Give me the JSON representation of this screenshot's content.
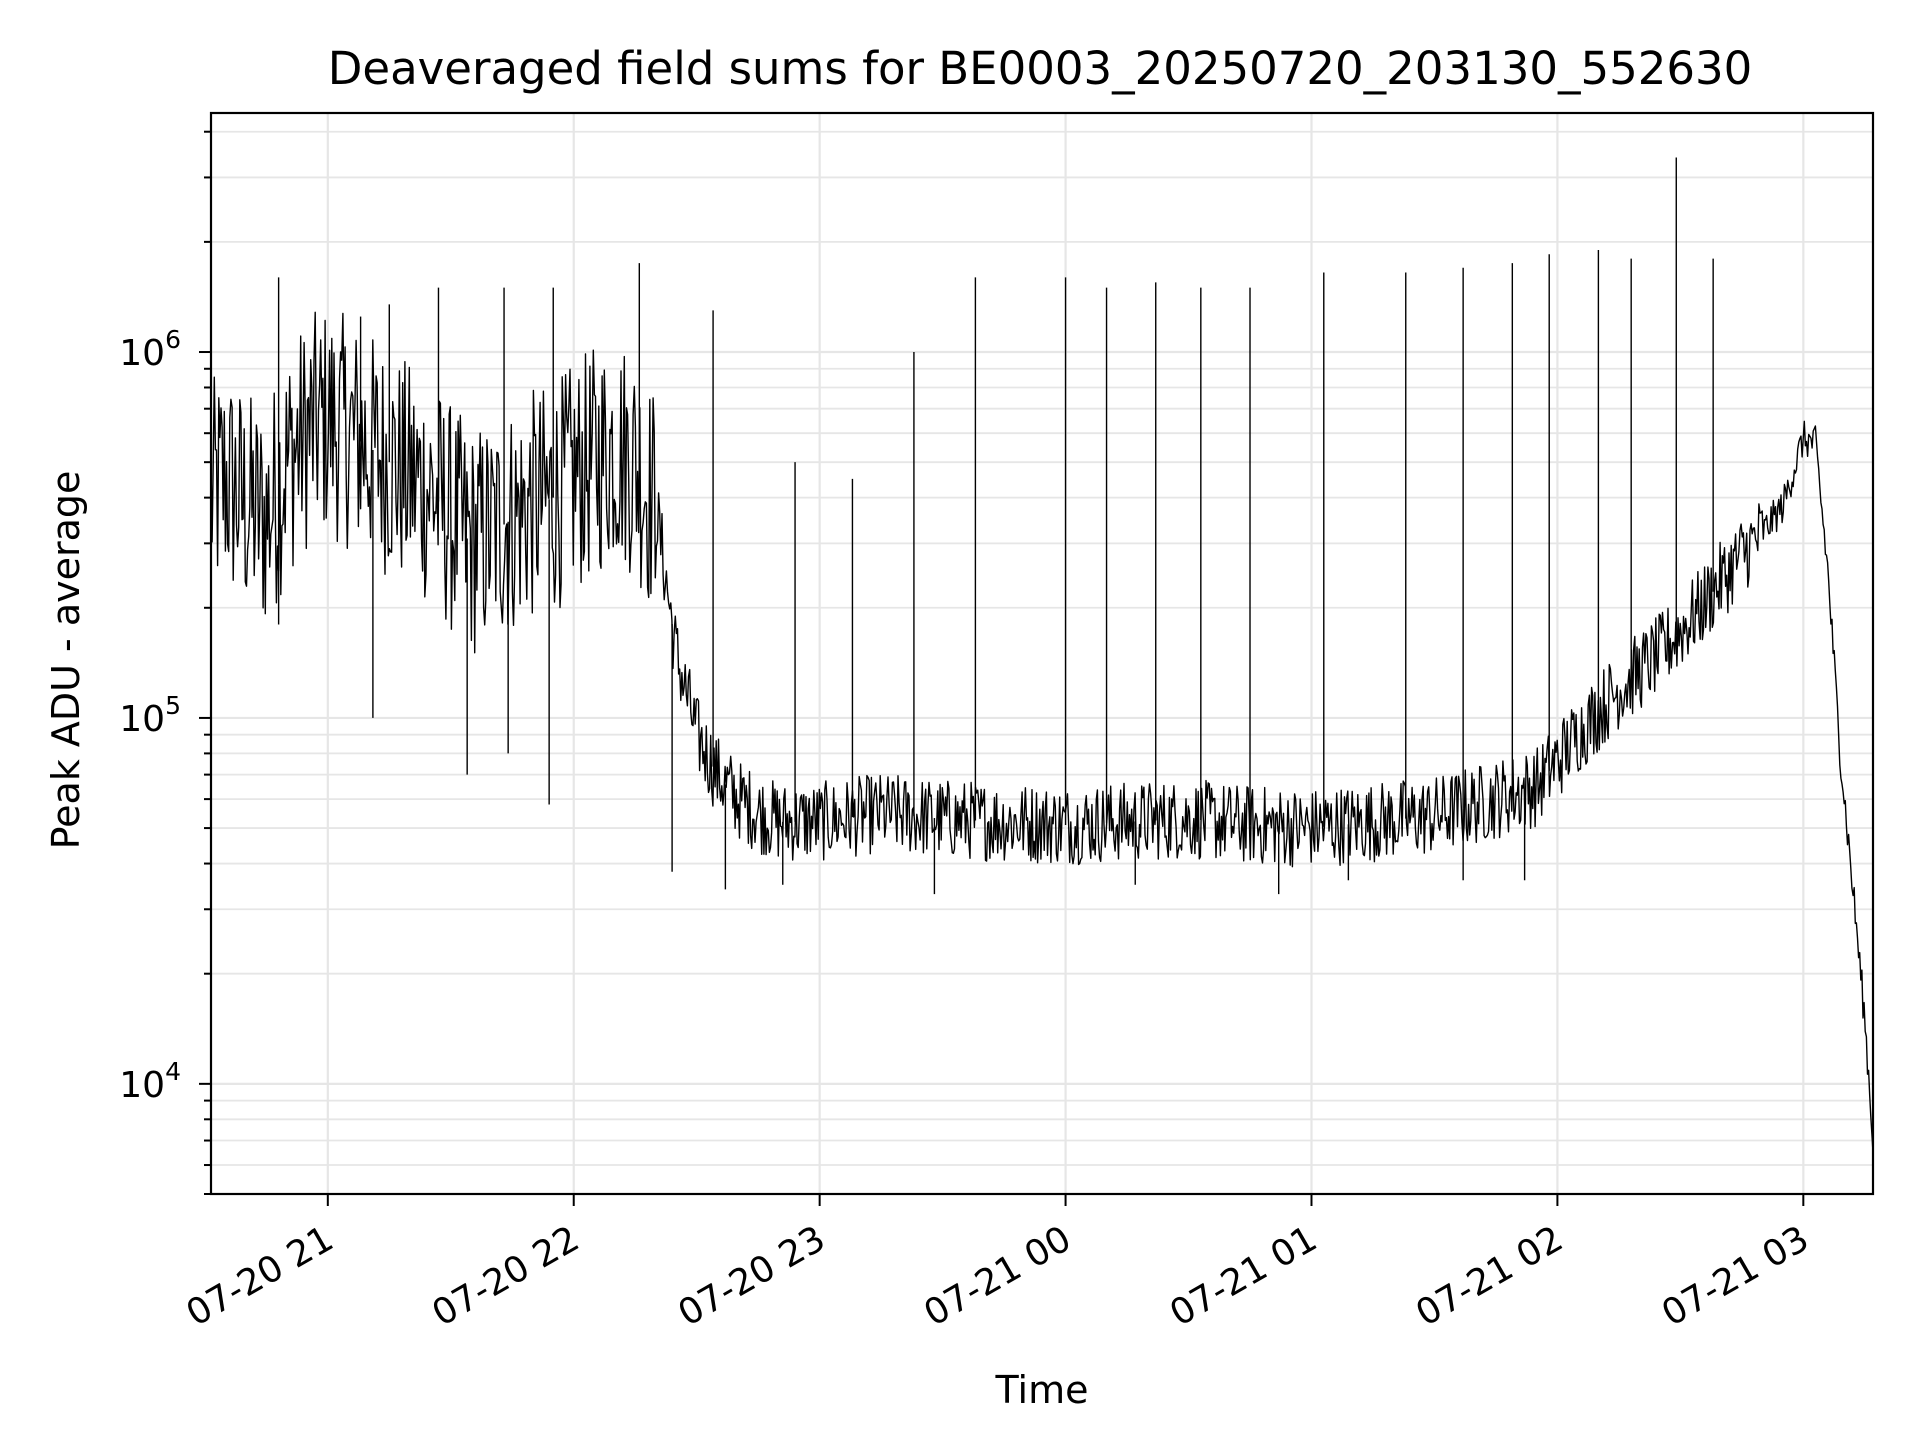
{
  "chart_data": {
    "type": "line",
    "title": "Deaveraged field sums for BE0003_20250720_203130_552630",
    "xlabel": "Time",
    "ylabel": "Peak ADU - average",
    "yscale": "log",
    "ylim": [
      5000,
      4500000
    ],
    "xlim": [
      "2025-07-20 20:31:30",
      "2025-07-21 03:17:00"
    ],
    "grid": true,
    "x_ticks": [
      {
        "label": "07-20 21",
        "time": "2025-07-20 21:00"
      },
      {
        "label": "07-20 22",
        "time": "2025-07-20 22:00"
      },
      {
        "label": "07-20 23",
        "time": "2025-07-20 23:00"
      },
      {
        "label": "07-21 00",
        "time": "2025-07-21 00:00"
      },
      {
        "label": "07-21 01",
        "time": "2025-07-21 01:00"
      },
      {
        "label": "07-21 02",
        "time": "2025-07-21 02:00"
      },
      {
        "label": "07-21 03",
        "time": "2025-07-21 03:00"
      }
    ],
    "y_ticks": [
      {
        "base": "10",
        "exp": "4",
        "value": 10000
      },
      {
        "base": "10",
        "exp": "5",
        "value": 100000
      },
      {
        "base": "10",
        "exp": "6",
        "value": 1000000
      }
    ],
    "line_color": "#000000",
    "series": [
      {
        "x": [
          "2025-07-20 20:31:30",
          "2025-07-20 20:35",
          "2025-07-20 20:40",
          "2025-07-20 20:45",
          "2025-07-20 20:50",
          "2025-07-20 20:55",
          "2025-07-20 21:00",
          "2025-07-20 21:05",
          "2025-07-20 21:10",
          "2025-07-20 21:15",
          "2025-07-20 21:20",
          "2025-07-20 21:25",
          "2025-07-20 21:30",
          "2025-07-20 21:35",
          "2025-07-20 21:40",
          "2025-07-20 21:45",
          "2025-07-20 21:50",
          "2025-07-20 21:55",
          "2025-07-20 22:00",
          "2025-07-20 22:05",
          "2025-07-20 22:10",
          "2025-07-20 22:15",
          "2025-07-20 22:20",
          "2025-07-20 22:25",
          "2025-07-20 22:30",
          "2025-07-20 22:35",
          "2025-07-20 22:40",
          "2025-07-20 22:45",
          "2025-07-20 22:50",
          "2025-07-20 23:00",
          "2025-07-20 23:15",
          "2025-07-20 23:30",
          "2025-07-20 23:45",
          "2025-07-21 00:00",
          "2025-07-21 00:15",
          "2025-07-21 00:30",
          "2025-07-21 00:45",
          "2025-07-21 01:00",
          "2025-07-21 01:15",
          "2025-07-21 01:30",
          "2025-07-21 01:45",
          "2025-07-21 01:55",
          "2025-07-21 02:05",
          "2025-07-21 02:15",
          "2025-07-21 02:25",
          "2025-07-21 02:35",
          "2025-07-21 02:45",
          "2025-07-21 02:50",
          "2025-07-21 02:55",
          "2025-07-21 03:00",
          "2025-07-21 03:03",
          "2025-07-21 03:06",
          "2025-07-21 03:09",
          "2025-07-21 03:12",
          "2025-07-21 03:15",
          "2025-07-21 03:17"
        ],
        "y": [
          400000,
          450000,
          380000,
          350000,
          500000,
          600000,
          650000,
          600000,
          550000,
          500000,
          450000,
          420000,
          350000,
          300000,
          320000,
          350000,
          380000,
          400000,
          450000,
          500000,
          550000,
          500000,
          380000,
          150000,
          90000,
          70000,
          60000,
          55000,
          52000,
          52000,
          55000,
          53000,
          52000,
          51000,
          52000,
          53000,
          51000,
          50000,
          52000,
          54000,
          60000,
          65000,
          90000,
          120000,
          150000,
          200000,
          280000,
          320000,
          380000,
          580000,
          560000,
          250000,
          80000,
          35000,
          15000,
          7000
        ]
      }
    ],
    "spikes": [
      {
        "x": "2025-07-20 20:48",
        "y": 1600000
      },
      {
        "x": "2025-07-20 21:08",
        "y": 1250000
      },
      {
        "x": "2025-07-20 21:15",
        "y": 1350000
      },
      {
        "x": "2025-07-20 21:27",
        "y": 1500000
      },
      {
        "x": "2025-07-20 21:43",
        "y": 1500000
      },
      {
        "x": "2025-07-20 21:55",
        "y": 1500000
      },
      {
        "x": "2025-07-20 22:16",
        "y": 1750000
      },
      {
        "x": "2025-07-20 22:34",
        "y": 1300000
      },
      {
        "x": "2025-07-20 22:54",
        "y": 500000
      },
      {
        "x": "2025-07-20 23:08",
        "y": 450000
      },
      {
        "x": "2025-07-20 23:23",
        "y": 1000000
      },
      {
        "x": "2025-07-20 23:38",
        "y": 1600000
      },
      {
        "x": "2025-07-21 00:00",
        "y": 1600000
      },
      {
        "x": "2025-07-21 00:10",
        "y": 1500000
      },
      {
        "x": "2025-07-21 00:22",
        "y": 1550000
      },
      {
        "x": "2025-07-21 00:33",
        "y": 1500000
      },
      {
        "x": "2025-07-21 00:45",
        "y": 1500000
      },
      {
        "x": "2025-07-21 01:03",
        "y": 1650000
      },
      {
        "x": "2025-07-21 01:23",
        "y": 1650000
      },
      {
        "x": "2025-07-21 01:37",
        "y": 1700000
      },
      {
        "x": "2025-07-21 01:49",
        "y": 1750000
      },
      {
        "x": "2025-07-21 01:58",
        "y": 1850000
      },
      {
        "x": "2025-07-21 02:10",
        "y": 1900000
      },
      {
        "x": "2025-07-21 02:18",
        "y": 1800000
      },
      {
        "x": "2025-07-21 02:29",
        "y": 3400000
      },
      {
        "x": "2025-07-21 02:38",
        "y": 1800000
      }
    ],
    "dips": [
      {
        "x": "2025-07-20 20:48",
        "y": 180000
      },
      {
        "x": "2025-07-20 21:11",
        "y": 100000
      },
      {
        "x": "2025-07-20 21:34",
        "y": 70000
      },
      {
        "x": "2025-07-20 21:44",
        "y": 80000
      },
      {
        "x": "2025-07-20 21:54",
        "y": 58000
      },
      {
        "x": "2025-07-20 22:24",
        "y": 38000
      },
      {
        "x": "2025-07-20 22:37",
        "y": 34000
      },
      {
        "x": "2025-07-20 22:51",
        "y": 35000
      },
      {
        "x": "2025-07-20 23:28",
        "y": 33000
      },
      {
        "x": "2025-07-21 00:17",
        "y": 35000
      },
      {
        "x": "2025-07-21 00:52",
        "y": 33000
      },
      {
        "x": "2025-07-21 01:09",
        "y": 36000
      },
      {
        "x": "2025-07-21 01:37",
        "y": 36000
      },
      {
        "x": "2025-07-21 01:52",
        "y": 36000
      }
    ]
  }
}
